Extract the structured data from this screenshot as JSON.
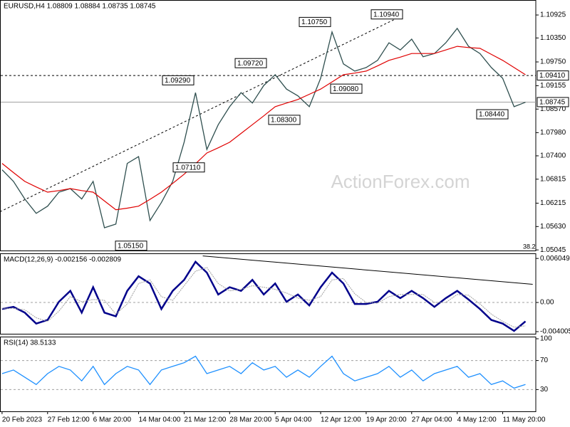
{
  "chart_data": [
    {
      "type": "line",
      "title": "EURUSD,H4 1.08809 1.08884 1.08735 1.08745",
      "x": [
        0,
        11,
        22,
        33,
        44,
        55,
        66,
        77,
        88,
        99,
        110,
        121,
        132,
        143,
        154,
        165,
        176,
        187,
        198,
        209,
        220,
        231,
        242,
        253,
        264,
        275,
        286,
        297,
        308,
        319,
        330,
        341,
        352,
        363,
        374,
        385,
        396,
        407,
        418,
        429,
        440,
        451,
        462,
        473,
        484,
        495,
        506
      ],
      "xlim": [
        -2,
        516
      ],
      "xticks": [
        {
          "value": 0,
          "label": "20 Feb 2023"
        },
        {
          "value": 44,
          "label": "27 Feb 12:00"
        },
        {
          "value": 88,
          "label": "6 Mar 20:00"
        },
        {
          "value": 132,
          "label": "14 Mar 04:00"
        },
        {
          "value": 176,
          "label": "21 Mar 12:00"
        },
        {
          "value": 220,
          "label": "28 Mar 20:00"
        },
        {
          "value": 264,
          "label": "5 Apr 04:00"
        },
        {
          "value": 308,
          "label": "12 Apr 12:00"
        },
        {
          "value": 352,
          "label": "19 Apr 20:00"
        },
        {
          "value": 396,
          "label": "27 Apr 04:00"
        },
        {
          "value": 440,
          "label": "4 May 12:00"
        },
        {
          "value": 484,
          "label": "11 May 20:00"
        }
      ],
      "ylim": [
        1.0503,
        1.113
      ],
      "yticks": [
        1.10925,
        {
          "value": 1.1035,
          "label": "1.10350"
        },
        {
          "value": 1.0975,
          "label": "1.09750"
        },
        1.09155,
        {
          "value": 1.0857,
          "label": "1.08570"
        },
        {
          "value": 1.0798,
          "label": "1.07980"
        },
        {
          "value": 1.074,
          "label": "1.07400"
        },
        1.06815,
        1.06215,
        {
          "value": 1.0563,
          "label": "1.05630"
        },
        1.05045
      ],
      "series": [
        {
          "color": "#2f4f4f",
          "values": [
            1.0705,
            1.0676,
            1.0632,
            1.0596,
            1.0614,
            1.0649,
            1.0658,
            1.0632,
            1.0676,
            1.056,
            1.0569,
            1.0721,
            1.0738,
            1.0578,
            1.0623,
            1.0676,
            1.0774,
            1.0898,
            1.0756,
            1.0818,
            1.0863,
            1.0898,
            1.0872,
            1.0916,
            1.0943,
            1.0907,
            1.089,
            1.0863,
            1.0934,
            1.105,
            1.097,
            1.0952,
            1.0961,
            1.0979,
            1.1023,
            1.1005,
            1.1032,
            1.0988,
            1.0996,
            1.1023,
            1.1059,
            1.1014,
            1.0996,
            1.0961,
            1.0934,
            1.0863,
            1.0874
          ]
        },
        {
          "color": "#e00000",
          "values": [
            1.0721,
            1.0698,
            1.0676,
            1.0662,
            1.0649,
            1.0653,
            1.0658,
            1.0653,
            1.0649,
            1.0627,
            1.0605,
            1.0609,
            1.0614,
            1.0631,
            1.0649,
            1.0671,
            1.0694,
            1.072,
            1.0747,
            1.076,
            1.0774,
            1.0796,
            1.0818,
            1.084,
            1.0863,
            1.0872,
            1.0881,
            1.0894,
            1.0907,
            1.0925,
            1.0943,
            1.0947,
            1.0952,
            1.0965,
            1.0979,
            1.0987,
            1.0996,
            1.0996,
            1.0996,
            1.1005,
            1.1014,
            1.1011,
            1.1009,
            1.0994,
            1.0979,
            1.0961,
            1.0943
          ]
        }
      ],
      "trend_line": {
        "x": [
          -2,
          387
        ],
        "values": [
          1.06,
          1.1091
        ]
      },
      "price_lines": [
        {
          "value": 1.0941,
          "label": "1.09410"
        },
        1.08745
      ],
      "annotations": [
        {
          "value": 1.1094,
          "label": "1.10940"
        },
        {
          "value": 1.1075,
          "label": "1.10750"
        },
        {
          "value": 1.0972,
          "label": "1.09720"
        },
        {
          "value": 1.0929,
          "label": "1.09290"
        },
        {
          "value": 1.0908,
          "label": "1.09080"
        },
        {
          "value": 1.083,
          "label": "1.08300"
        },
        {
          "value": 1.0711,
          "label": "1.07110"
        },
        {
          "value": 1.0515,
          "label": "1.05150"
        },
        {
          "value": 1.0844,
          "label": "1.08440"
        }
      ],
      "fib_level": 38.2,
      "watermark": "ActionForex.com"
    },
    {
      "type": "line",
      "title": "MACD(12,26,9) -0.002156 -0.002809",
      "ylim": [
        -0.0043,
        0.00675
      ],
      "yticks": [
        0.006049,
        {
          "value": 0,
          "label": "0.00"
        },
        -0.004005
      ],
      "levels": [
        0
      ],
      "series": [
        {
          "color": "#00008b",
          "values": [
            -0.0009,
            -0.0006,
            -0.0014,
            -0.0029,
            -0.0024,
            0.0001,
            0.0016,
            -0.0014,
            0.0021,
            -0.0014,
            -0.0019,
            0.0016,
            0.0036,
            0.0026,
            -0.0009,
            0.0016,
            0.0031,
            0.0056,
            0.0041,
            0.0011,
            0.0021,
            0.0016,
            0.0031,
            0.0011,
            0.0026,
            0.0001,
            0.0011,
            -0.0004,
            0.0021,
            0.0041,
            0.0026,
            -0.0002,
            -0.0002,
            0.0001,
            0.0016,
            0.0006,
            0.0016,
            0.0006,
            -0.0006,
            0.0006,
            0.0016,
            0.0004,
            -0.0009,
            -0.0024,
            -0.0029,
            -0.0039,
            -0.0026
          ]
        },
        {
          "color": "#a0a0a0",
          "values": [
            -0.0008,
            -0.0008,
            -0.001,
            -0.0021,
            -0.0026,
            -0.0012,
            0.0008,
            0.0001,
            0.0004,
            0.0003,
            -0.0016,
            -0.0002,
            0.0026,
            0.0031,
            0.0008,
            0.0003,
            0.0023,
            0.0043,
            0.0048,
            0.0026,
            0.0016,
            0.0018,
            0.0023,
            0.0021,
            0.0018,
            0.0013,
            0.0006,
            0.0003,
            0.0008,
            0.0031,
            0.0033,
            0.0012,
            0,
            -0.0001,
            0.0008,
            0.0011,
            0.0011,
            0.0011,
            0,
            0,
            0.0011,
            0.001,
            -0.0002,
            -0.0016,
            -0.0026,
            -0.0034,
            -0.0032
          ]
        }
      ],
      "trend_line": {
        "x": [
          194,
          513
        ],
        "values": [
          0.0064,
          0.0025
        ]
      }
    },
    {
      "type": "line",
      "title": "RSI(14) 38.5133",
      "ylim": [
        0,
        100
      ],
      "yticks": [
        100,
        70,
        30
      ],
      "levels": [
        70,
        30
      ],
      "series": [
        {
          "color": "#1e90ff",
          "values": [
            52,
            57,
            47,
            37,
            52,
            62,
            57,
            42,
            62,
            37,
            52,
            62,
            57,
            37,
            57,
            62,
            67,
            76,
            52,
            57,
            62,
            52,
            67,
            57,
            62,
            47,
            57,
            47,
            62,
            76,
            52,
            42,
            47,
            52,
            62,
            47,
            57,
            42,
            52,
            57,
            62,
            47,
            52,
            37,
            42,
            32,
            37
          ]
        }
      ]
    }
  ]
}
